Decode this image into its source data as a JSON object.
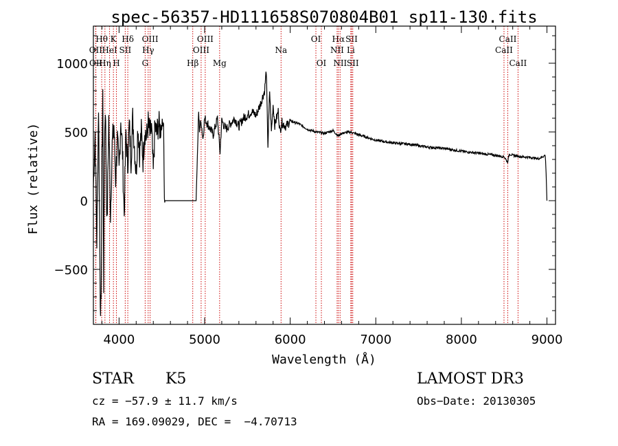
{
  "chart_data": {
    "type": "line",
    "title": "spec-56357-HD111658S070804B01_sp11-130.fits",
    "xlabel": "Wavelength (Å)",
    "ylabel": "Flux (relative)",
    "xlim": [
      3700,
      9100
    ],
    "ylim": [
      -900,
      1270
    ],
    "x_ticks": [
      4000,
      5000,
      6000,
      7000,
      8000,
      9000
    ],
    "y_ticks": [
      -500,
      0,
      500,
      1000
    ],
    "series": [
      {
        "name": "spectrum",
        "x": [
          3700,
          3720,
          3740,
          3760,
          3780,
          3790,
          3800,
          3810,
          3820,
          3830,
          3840,
          3860,
          3880,
          3900,
          3920,
          3940,
          3960,
          3980,
          4000,
          4020,
          4040,
          4060,
          4080,
          4100,
          4120,
          4140,
          4160,
          4180,
          4200,
          4220,
          4240,
          4260,
          4280,
          4300,
          4320,
          4340,
          4360,
          4380,
          4400,
          4420,
          4440,
          4460,
          4480,
          4500,
          4520,
          4530,
          4540,
          4600,
          4700,
          4800,
          4900,
          4930,
          4940,
          4960,
          4980,
          5000,
          5050,
          5100,
          5150,
          5180,
          5200,
          5250,
          5300,
          5350,
          5400,
          5450,
          5500,
          5550,
          5600,
          5650,
          5700,
          5720,
          5740,
          5760,
          5780,
          5800,
          5820,
          5840,
          5860,
          5880,
          5900,
          5950,
          6000,
          6100,
          6200,
          6300,
          6400,
          6500,
          6563,
          6600,
          6700,
          6800,
          6900,
          7000,
          7200,
          7400,
          7600,
          7800,
          8000,
          8200,
          8400,
          8500,
          8540,
          8560,
          8600,
          8700,
          8800,
          8900,
          8980,
          8990,
          9000
        ],
        "y": [
          100,
          500,
          -300,
          700,
          -700,
          -820,
          300,
          800,
          -600,
          400,
          700,
          -200,
          600,
          -100,
          400,
          550,
          150,
          450,
          200,
          600,
          350,
          -100,
          500,
          250,
          550,
          300,
          600,
          400,
          200,
          550,
          350,
          500,
          300,
          520,
          450,
          560,
          480,
          520,
          200,
          550,
          480,
          560,
          520,
          560,
          580,
          0,
          0,
          0,
          0,
          0,
          0,
          640,
          520,
          580,
          450,
          600,
          540,
          480,
          600,
          350,
          580,
          520,
          560,
          600,
          540,
          600,
          620,
          650,
          620,
          700,
          800,
          950,
          400,
          800,
          500,
          700,
          550,
          600,
          650,
          500,
          570,
          540,
          580,
          560,
          520,
          500,
          490,
          510,
          470,
          490,
          500,
          480,
          460,
          440,
          420,
          410,
          390,
          380,
          360,
          345,
          330,
          320,
          280,
          340,
          330,
          320,
          315,
          305,
          330,
          200,
          0
        ]
      }
    ],
    "reference_lines": [
      {
        "label": "Hθ",
        "x": 3797,
        "row": 1
      },
      {
        "label": "OII",
        "x": 3727,
        "row": 2
      },
      {
        "label": "OII",
        "x": 3729,
        "row": 3
      },
      {
        "label": "K",
        "x": 3934,
        "row": 1
      },
      {
        "label": "HeI",
        "x": 3889,
        "row": 2
      },
      {
        "label": "Hη",
        "x": 3835,
        "row": 3
      },
      {
        "label": "H",
        "x": 3969,
        "row": 3
      },
      {
        "label": "Hδ",
        "x": 4102,
        "row": 1
      },
      {
        "label": "SII",
        "x": 4072,
        "row": 2
      },
      {
        "label": "OIII",
        "x": 4363,
        "row": 1
      },
      {
        "label": "Hγ",
        "x": 4340,
        "row": 2
      },
      {
        "label": "G",
        "x": 4305,
        "row": 3
      },
      {
        "label": "Hβ",
        "x": 4861,
        "row": 3
      },
      {
        "label": "OIII",
        "x": 5007,
        "row": 1
      },
      {
        "label": "OIII",
        "x": 4959,
        "row": 2
      },
      {
        "label": "Mg",
        "x": 5175,
        "row": 3
      },
      {
        "label": "Na",
        "x": 5893,
        "row": 2
      },
      {
        "label": "OI",
        "x": 6300,
        "row": 1
      },
      {
        "label": "OI",
        "x": 6364,
        "row": 3
      },
      {
        "label": "Hα",
        "x": 6563,
        "row": 1
      },
      {
        "label": "SII",
        "x": 6717,
        "row": 1
      },
      {
        "label": "NII",
        "x": 6548,
        "row": 2
      },
      {
        "label": "Li",
        "x": 6708,
        "row": 2
      },
      {
        "label": "NII",
        "x": 6583,
        "row": 3
      },
      {
        "label": "SII",
        "x": 6731,
        "row": 3
      },
      {
        "label": "CaII",
        "x": 8542,
        "row": 1
      },
      {
        "label": "CaII",
        "x": 8498,
        "row": 2
      },
      {
        "label": "CaII",
        "x": 8662,
        "row": 3
      }
    ]
  },
  "info": {
    "class": "STAR",
    "subclass": "K5",
    "survey": "LAMOST DR3",
    "cz": "cz = −57.9 ± 11.7 km/s",
    "obs_date": "Obs−Date: 20130305",
    "coords": "RA = 169.09029, DEC =  −4.70713"
  }
}
